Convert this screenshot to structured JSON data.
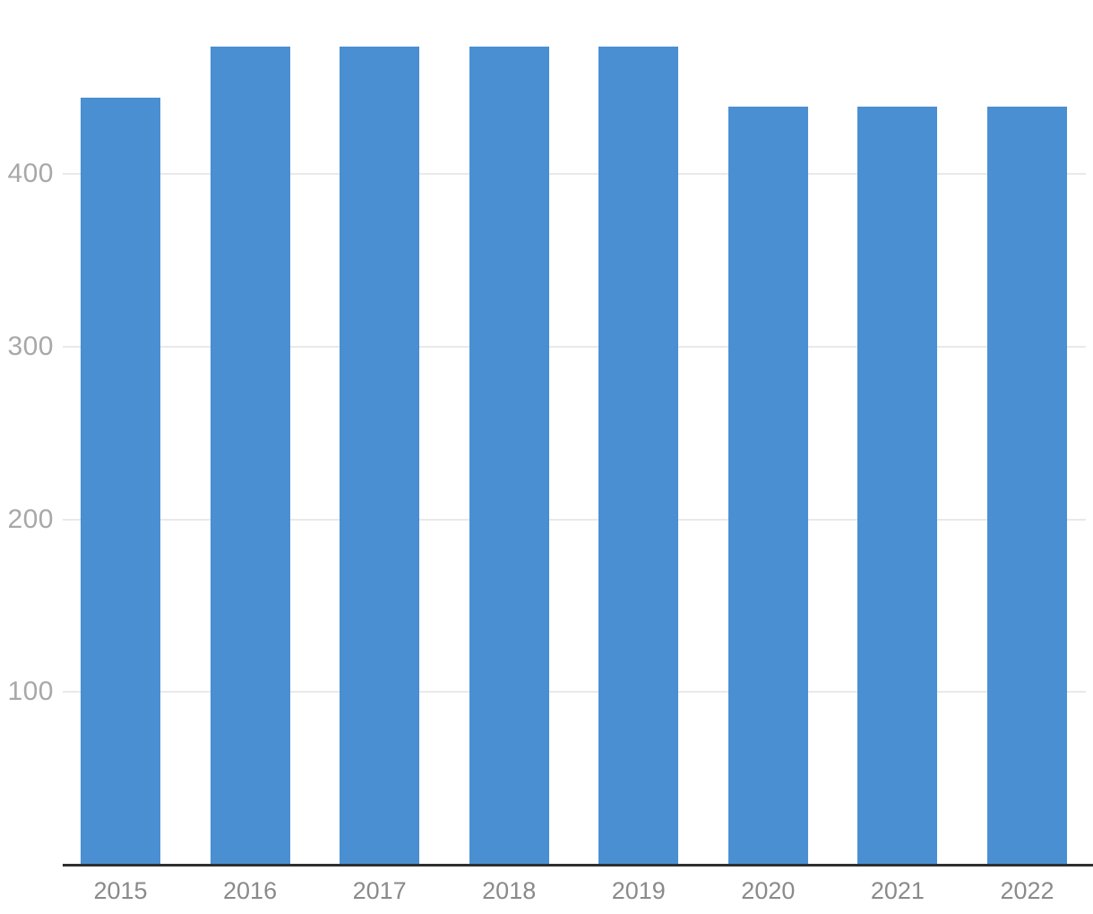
{
  "chart_data": {
    "type": "bar",
    "title": "",
    "xlabel": "",
    "ylabel": "",
    "categories": [
      "2015",
      "2016",
      "2017",
      "2018",
      "2019",
      "2020",
      "2021",
      "2022"
    ],
    "values": [
      444,
      474,
      474,
      474,
      474,
      439,
      439,
      439
    ],
    "yticks": [
      100,
      200,
      300,
      400
    ],
    "ylim": [
      0,
      500
    ],
    "grid": true,
    "legend": false,
    "colors": {
      "bar": "#4a8fd2",
      "gridline": "#e9e9e9",
      "axis_line": "#2f2f2f",
      "y_tick_text": "#a8a8a8",
      "x_tick_text": "#8a8a8a",
      "background": "#ffffff"
    }
  }
}
